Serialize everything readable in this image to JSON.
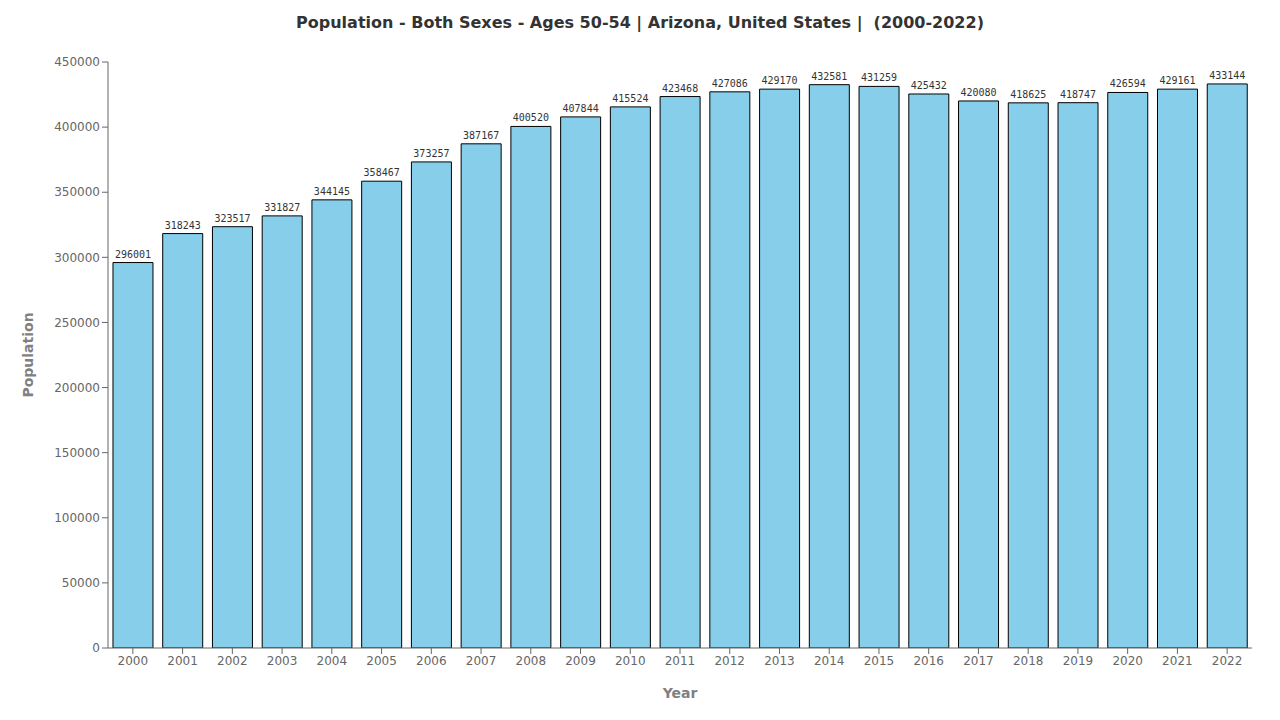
{
  "chart_data": {
    "type": "bar",
    "title": "Population - Both Sexes - Ages 50-54 | Arizona, United States |  (2000-2022)",
    "xlabel": "Year",
    "ylabel": "Population",
    "categories": [
      "2000",
      "2001",
      "2002",
      "2003",
      "2004",
      "2005",
      "2006",
      "2007",
      "2008",
      "2009",
      "2010",
      "2011",
      "2012",
      "2013",
      "2014",
      "2015",
      "2016",
      "2017",
      "2018",
      "2019",
      "2020",
      "2021",
      "2022"
    ],
    "values": [
      296001,
      318243,
      323517,
      331827,
      344145,
      358467,
      373257,
      387167,
      400520,
      407844,
      415524,
      423468,
      427086,
      429170,
      432581,
      431259,
      425432,
      420080,
      418625,
      418747,
      426594,
      429161,
      433144
    ],
    "color": "#87ceeb",
    "ylim": [
      0,
      450000
    ],
    "yticks": [
      0,
      50000,
      100000,
      150000,
      200000,
      250000,
      300000,
      350000,
      400000,
      450000
    ],
    "grid": false,
    "data_labels": true
  }
}
